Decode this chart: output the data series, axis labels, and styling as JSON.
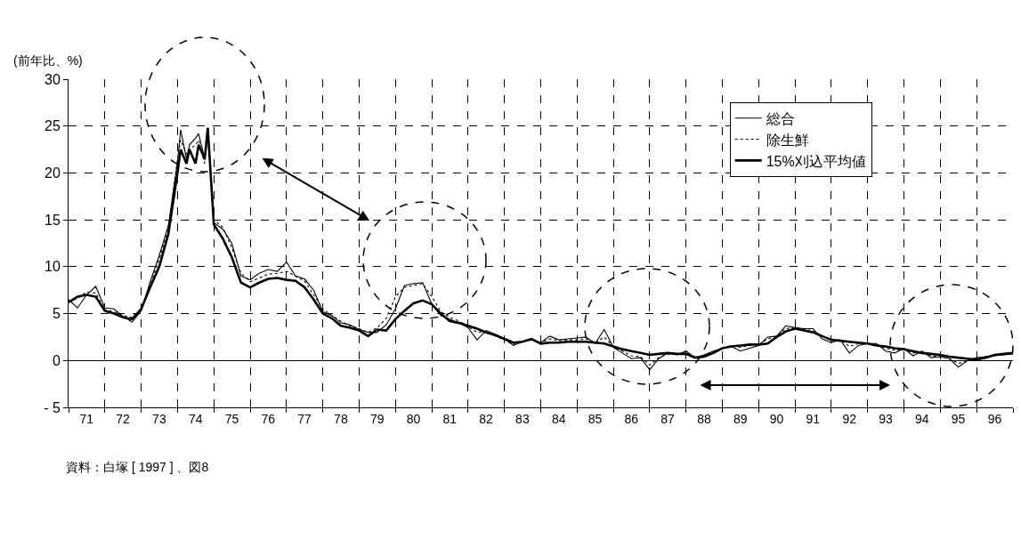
{
  "chart_data": {
    "type": "line",
    "ylabel": "(前年比、%)",
    "annotations": [
      "資料：白塚 [ 1997 ] 、図8"
    ],
    "x": [
      "1971-01",
      "1971-04",
      "1971-07",
      "1971-10",
      "1972-01",
      "1972-04",
      "1972-07",
      "1972-10",
      "1973-01",
      "1973-04",
      "1973-07",
      "1973-10",
      "1974-01",
      "1974-02",
      "1974-04",
      "1974-05",
      "1974-07",
      "1974-08",
      "1974-10",
      "1974-11",
      "1975-01",
      "1975-04",
      "1975-07",
      "1975-10",
      "1976-01",
      "1976-04",
      "1976-07",
      "1976-10",
      "1977-01",
      "1977-04",
      "1977-07",
      "1977-10",
      "1978-01",
      "1978-04",
      "1978-07",
      "1978-10",
      "1979-01",
      "1979-04",
      "1979-07",
      "1979-10",
      "1980-01",
      "1980-04",
      "1980-07",
      "1980-10",
      "1981-01",
      "1981-04",
      "1981-07",
      "1981-10",
      "1982-01",
      "1982-04",
      "1982-07",
      "1982-10",
      "1983-01",
      "1983-04",
      "1983-07",
      "1983-10",
      "1984-01",
      "1984-04",
      "1984-07",
      "1984-10",
      "1985-01",
      "1985-04",
      "1985-07",
      "1985-10",
      "1986-01",
      "1986-04",
      "1986-07",
      "1986-10",
      "1987-01",
      "1987-04",
      "1987-07",
      "1987-10",
      "1988-01",
      "1988-04",
      "1988-07",
      "1988-10",
      "1989-01",
      "1989-04",
      "1989-07",
      "1989-10",
      "1990-01",
      "1990-04",
      "1990-07",
      "1990-10",
      "1991-01",
      "1991-04",
      "1991-07",
      "1991-10",
      "1992-01",
      "1992-04",
      "1992-07",
      "1992-10",
      "1993-01",
      "1993-04",
      "1993-07",
      "1993-10",
      "1994-01",
      "1994-04",
      "1994-07",
      "1994-10",
      "1995-01",
      "1995-04",
      "1995-07",
      "1995-10",
      "1996-01",
      "1996-04",
      "1996-07",
      "1996-10",
      "1997-01"
    ],
    "series": [
      {
        "name": "総合",
        "color": "#000000",
        "line_style": "solid",
        "values": [
          6.5,
          5.6,
          7.0,
          7.9,
          5.6,
          5.5,
          4.7,
          4.1,
          5.3,
          8.4,
          11.2,
          14.4,
          21.2,
          24.6,
          21.5,
          23.0,
          23.7,
          24.2,
          21.5,
          24.8,
          14.7,
          14.0,
          12.5,
          9.0,
          8.6,
          9.3,
          9.7,
          9.5,
          10.5,
          9.0,
          8.7,
          7.5,
          5.2,
          4.8,
          4.0,
          3.8,
          3.3,
          3.0,
          3.0,
          3.8,
          5.5,
          8.0,
          8.2,
          8.3,
          6.0,
          4.8,
          4.4,
          4.0,
          3.5,
          2.2,
          3.2,
          2.8,
          2.3,
          1.6,
          2.0,
          2.2,
          1.9,
          2.6,
          2.2,
          2.3,
          2.4,
          2.5,
          1.8,
          3.3,
          1.4,
          0.8,
          0.2,
          0.3,
          -1.0,
          0.2,
          0.8,
          0.6,
          1.0,
          0.3,
          0.6,
          1.0,
          1.3,
          1.5,
          1.0,
          1.3,
          1.6,
          2.5,
          2.6,
          3.7,
          3.5,
          3.4,
          3.4,
          2.3,
          1.9,
          2.2,
          0.8,
          1.6,
          1.8,
          1.8,
          1.0,
          0.8,
          1.3,
          0.5,
          1.0,
          0.3,
          0.4,
          0.2,
          -0.7,
          0.0,
          0.3,
          0.4,
          0.5,
          0.6,
          0.7
        ]
      },
      {
        "name": "除生鮮",
        "color": "#000000",
        "line_style": "dotted",
        "values": [
          6.3,
          6.6,
          7.3,
          7.2,
          5.4,
          5.2,
          4.8,
          4.6,
          5.5,
          8.0,
          10.8,
          14.0,
          21.5,
          23.5,
          22.0,
          22.5,
          23.0,
          23.5,
          21.0,
          24.5,
          15.0,
          14.2,
          12.0,
          9.3,
          8.4,
          8.8,
          9.2,
          9.3,
          9.5,
          9.0,
          8.5,
          7.0,
          5.5,
          4.8,
          4.2,
          3.7,
          3.4,
          3.0,
          3.5,
          4.5,
          6.8,
          7.8,
          8.0,
          8.2,
          6.8,
          5.2,
          4.6,
          4.2,
          3.6,
          3.0,
          3.1,
          2.6,
          2.2,
          1.7,
          2.0,
          2.2,
          1.9,
          2.3,
          2.1,
          2.2,
          2.2,
          2.3,
          1.9,
          2.5,
          1.5,
          1.0,
          0.5,
          0.4,
          -0.5,
          0.3,
          0.7,
          0.7,
          0.8,
          0.4,
          0.5,
          0.9,
          1.3,
          1.6,
          1.4,
          1.6,
          1.7,
          2.3,
          2.6,
          3.4,
          3.5,
          3.3,
          3.2,
          2.6,
          2.1,
          2.2,
          1.5,
          1.8,
          1.8,
          1.7,
          1.3,
          1.1,
          1.2,
          0.8,
          0.9,
          0.5,
          0.4,
          0.2,
          -0.3,
          -0.1,
          0.2,
          0.4,
          0.6,
          0.7,
          0.8
        ]
      },
      {
        "name": "15%刈込平均値",
        "color": "#000000",
        "line_style": "solid",
        "values": [
          6.2,
          6.8,
          7.0,
          6.8,
          5.3,
          5.0,
          4.6,
          4.4,
          5.5,
          7.8,
          10.0,
          13.5,
          20.0,
          22.5,
          21.0,
          22.5,
          21.0,
          23.0,
          21.5,
          24.8,
          14.5,
          13.0,
          11.0,
          8.3,
          7.8,
          8.3,
          8.7,
          8.8,
          8.6,
          8.5,
          7.8,
          6.5,
          5.0,
          4.5,
          3.7,
          3.5,
          3.2,
          2.6,
          3.3,
          3.2,
          4.4,
          5.3,
          6.1,
          6.4,
          6.0,
          5.0,
          4.2,
          4.0,
          3.7,
          3.4,
          3.0,
          2.7,
          2.3,
          1.9,
          2.0,
          2.3,
          1.8,
          1.9,
          1.9,
          2.0,
          2.0,
          2.0,
          1.9,
          1.8,
          1.5,
          1.2,
          1.0,
          0.8,
          0.6,
          0.7,
          0.8,
          0.7,
          0.7,
          0.3,
          0.4,
          0.8,
          1.3,
          1.5,
          1.6,
          1.7,
          1.7,
          1.8,
          2.5,
          3.1,
          3.4,
          3.2,
          3.0,
          2.6,
          2.2,
          2.1,
          2.0,
          1.9,
          1.8,
          1.6,
          1.5,
          1.3,
          1.2,
          1.0,
          0.8,
          0.7,
          0.6,
          0.4,
          0.3,
          0.2,
          0.1,
          0.3,
          0.6,
          0.7,
          0.8
        ]
      }
    ],
    "xlim": [
      "1971-01",
      "1997-01"
    ],
    "xticks": [
      {
        "value": "1971-07",
        "label": "71"
      },
      {
        "value": "1972-07",
        "label": "72"
      },
      {
        "value": "1973-07",
        "label": "73"
      },
      {
        "value": "1974-07",
        "label": "74"
      },
      {
        "value": "1975-07",
        "label": "75"
      },
      {
        "value": "1976-07",
        "label": "76"
      },
      {
        "value": "1977-07",
        "label": "77"
      },
      {
        "value": "1978-07",
        "label": "78"
      },
      {
        "value": "1979-07",
        "label": "79"
      },
      {
        "value": "1980-07",
        "label": "80"
      },
      {
        "value": "1981-07",
        "label": "81"
      },
      {
        "value": "1982-07",
        "label": "82"
      },
      {
        "value": "1983-07",
        "label": "83"
      },
      {
        "value": "1984-07",
        "label": "84"
      },
      {
        "value": "1985-07",
        "label": "85"
      },
      {
        "value": "1986-07",
        "label": "86"
      },
      {
        "value": "1987-07",
        "label": "87"
      },
      {
        "value": "1988-07",
        "label": "88"
      },
      {
        "value": "1989-07",
        "label": "89"
      },
      {
        "value": "1990-07",
        "label": "90"
      },
      {
        "value": "1991-07",
        "label": "91"
      },
      {
        "value": "1992-07",
        "label": "92"
      },
      {
        "value": "1993-07",
        "label": "93"
      },
      {
        "value": "1994-07",
        "label": "94"
      },
      {
        "value": "1995-07",
        "label": "95"
      },
      {
        "value": "1996-07",
        "label": "96"
      }
    ],
    "ylim": [
      -5,
      30
    ],
    "yticks": [
      {
        "value": -5,
        "label": "- 5"
      },
      0,
      5,
      10,
      15,
      20,
      25,
      30
    ],
    "grid": true,
    "legend": "top right",
    "marker": "none"
  }
}
